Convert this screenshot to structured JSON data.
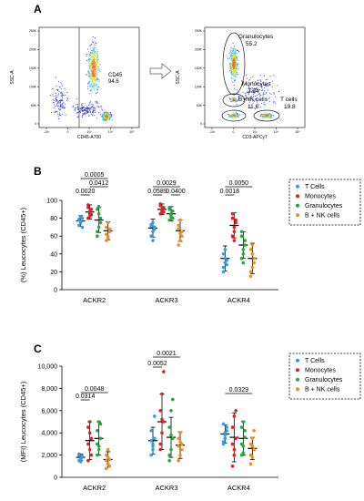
{
  "panel_letters": [
    "A",
    "B",
    "C"
  ],
  "colors": {
    "t_cells": "#3b9ad9",
    "monocytes": "#e02020",
    "granulocytes": "#27a838",
    "bnk": "#e8902a",
    "dens_low": "#2a33c8",
    "dens_mid": "#2fb8e6",
    "dens_hi": "#d8e030",
    "dens_peak": "#e8742a"
  },
  "chart_data": [
    {
      "type": "scatter",
      "panel": "A-left",
      "xlabel": "CD45-A700",
      "ylabel": "SSC-A",
      "xticks": [
        "-10³",
        "0",
        "10³",
        "10⁴",
        "10⁵"
      ],
      "yticks": [
        "0",
        "50K",
        "100K",
        "150K",
        "200K",
        "250K"
      ],
      "gates": [
        {
          "name": "CD45",
          "value": "94.6"
        }
      ]
    },
    {
      "type": "scatter",
      "panel": "A-right",
      "xlabel": "CD3-APCy7",
      "ylabel": "SSC-A",
      "xticks": [
        "-10³",
        "0",
        "10³",
        "10⁴",
        "10⁵"
      ],
      "yticks": [
        "0",
        "50K",
        "100K",
        "150K",
        "200K",
        "250K"
      ],
      "gates": [
        {
          "name": "Granulocytes",
          "value": "55.2"
        },
        {
          "name": "Monocytes",
          "value": "7.84"
        },
        {
          "name": "B+NK cells",
          "value": "11.6"
        },
        {
          "name": "T cells",
          "value": "19.8"
        }
      ]
    },
    {
      "type": "scatter",
      "panel": "B",
      "ylabel": "(%) Leucocytes (CD45+)",
      "ylim": [
        0,
        100
      ],
      "yticks": [
        "0",
        "20",
        "40",
        "60",
        "80",
        "100"
      ],
      "categories": [
        "ACKR2",
        "ACKR3",
        "ACKR4"
      ],
      "legend": [
        "T Cells",
        "Monocytes",
        "Granulocytes",
        "B + NK cells"
      ],
      "series": [
        {
          "name": "T Cells",
          "mean": [
            77,
            69,
            35
          ],
          "sd": [
            6,
            10,
            14
          ],
          "points": [
            [
              72,
              75,
              80,
              79,
              82,
              70,
              78,
              76
            ],
            [
              60,
              65,
              70,
              73,
              75,
              68,
              71,
              55
            ],
            [
              25,
              30,
              33,
              40,
              45,
              28,
              20,
              35
            ]
          ]
        },
        {
          "name": "Monocytes",
          "mean": [
            87,
            90,
            72
          ],
          "sd": [
            8,
            6,
            14
          ],
          "points": [
            [
              80,
              85,
              90,
              95,
              88,
              84,
              92,
              82
            ],
            [
              85,
              88,
              92,
              94,
              90,
              87,
              96,
              86
            ],
            [
              60,
              70,
              78,
              85,
              65,
              75,
              80,
              55
            ]
          ]
        },
        {
          "name": "Granulocytes",
          "mean": [
            78,
            85,
            50
          ],
          "sd": [
            14,
            8,
            15
          ],
          "points": [
            [
              60,
              70,
              80,
              90,
              85,
              75,
              65,
              93
            ],
            [
              78,
              82,
              88,
              92,
              85,
              80,
              90,
              84
            ],
            [
              35,
              45,
              55,
              60,
              40,
              50,
              65,
              30
            ]
          ]
        },
        {
          "name": "B + NK cells",
          "mean": [
            66,
            66,
            35
          ],
          "sd": [
            10,
            12,
            17
          ],
          "points": [
            [
              55,
              60,
              65,
              70,
              75,
              68,
              62,
              58
            ],
            [
              50,
              55,
              65,
              72,
              78,
              60,
              68,
              63
            ],
            [
              15,
              25,
              35,
              45,
              50,
              30,
              20,
              40
            ]
          ]
        }
      ],
      "significance": [
        {
          "label": "0.0020"
        },
        {
          "label": "0.0412"
        },
        {
          "label": "0.0005"
        },
        {
          "label": "0.0589"
        },
        {
          "label": "0.0400"
        },
        {
          "label": "0.0029"
        },
        {
          "label": "0.0018"
        },
        {
          "label": "0.0050"
        }
      ]
    },
    {
      "type": "scatter",
      "panel": "C",
      "ylabel": "(MFI) Leucocytes (CD45+)",
      "ylim": [
        0,
        10000
      ],
      "yticks": [
        "0",
        "2,000",
        "4,000",
        "6,000",
        "8,000",
        "10,000"
      ],
      "categories": [
        "ACKR2",
        "ACKR3",
        "ACKR4"
      ],
      "legend": [
        "T Cells",
        "Monocytes",
        "Granulocytes",
        "B + NK cells"
      ],
      "series": [
        {
          "name": "T Cells",
          "mean": [
            1800,
            3300,
            3900
          ],
          "sd": [
            300,
            1200,
            800
          ],
          "points": [
            [
              1500,
              1700,
              1900,
              2000,
              1600,
              1800,
              2100,
              1400
            ],
            [
              2000,
              3000,
              3500,
              4200,
              2500,
              5500,
              3300,
              2800
            ],
            [
              3000,
              3500,
              4200,
              4800,
              3800,
              4500,
              3200,
              4000
            ]
          ]
        },
        {
          "name": "Monocytes",
          "mean": [
            3300,
            5000,
            3600
          ],
          "sd": [
            1700,
            2500,
            2200
          ],
          "points": [
            [
              1500,
              2500,
              3500,
              4500,
              5000,
              2000,
              3000,
              4000
            ],
            [
              2500,
              4000,
              5000,
              6000,
              7500,
              9500,
              3000,
              5200
            ],
            [
              1000,
              2000,
              3500,
              4500,
              5500,
              6000,
              3000,
              2500
            ]
          ]
        },
        {
          "name": "Granulocytes",
          "mean": [
            3500,
            3600,
            3500
          ],
          "sd": [
            1500,
            1800,
            1500
          ],
          "points": [
            [
              2000,
              2800,
              3500,
              4200,
              5000,
              4800,
              3000,
              2500
            ],
            [
              1500,
              2500,
              3500,
              4500,
              6000,
              7000,
              2000,
              3800
            ],
            [
              2000,
              2800,
              3600,
              4500,
              5000,
              4200,
              3000,
              2200
            ]
          ]
        },
        {
          "name": "B + NK cells",
          "mean": [
            1600,
            2900,
            2600
          ],
          "sd": [
            700,
            1200,
            1000
          ],
          "points": [
            [
              800,
              1200,
              1600,
              2000,
              2500,
              1000,
              1500,
              1800
            ],
            [
              1500,
              2000,
              3000,
              3500,
              4000,
              2500,
              2800,
              3200
            ],
            [
              1200,
              1800,
              2500,
              3000,
              3500,
              4200,
              2000,
              2800
            ]
          ]
        }
      ],
      "significance": [
        {
          "label": "0.0314"
        },
        {
          "label": "0.0048"
        },
        {
          "label": "0.0052"
        },
        {
          "label": "0.0021"
        },
        {
          "label": "0.0329"
        }
      ]
    }
  ]
}
